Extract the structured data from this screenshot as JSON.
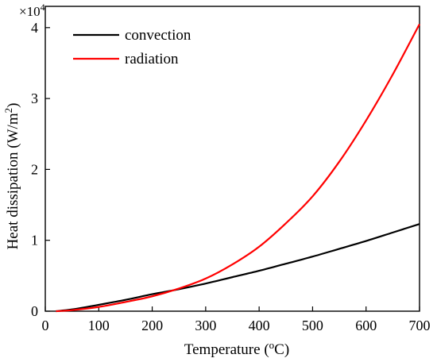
{
  "chart_data": {
    "type": "line",
    "xlabel": "Temperature (",
    "xlabel_sup": "o",
    "xlabel_unit": "C)",
    "ylabel": "Heat dissipation (W/m",
    "ylabel_sup": "2",
    "ylabel_close": ")",
    "y_multiplier": "×10",
    "y_multiplier_exp": "4",
    "xlim": [
      0,
      700
    ],
    "ylim": [
      0,
      4.3
    ],
    "x_ticks": [
      0,
      100,
      200,
      300,
      400,
      500,
      600,
      700
    ],
    "y_ticks": [
      0,
      1,
      2,
      3,
      4
    ],
    "legend_position": "top-left",
    "grid": false,
    "series": [
      {
        "name": "convection",
        "color": "#000000",
        "x": [
          20,
          50,
          100,
          150,
          200,
          250,
          300,
          350,
          400,
          450,
          500,
          550,
          600,
          650,
          700
        ],
        "y": [
          0,
          0.025,
          0.09,
          0.16,
          0.24,
          0.31,
          0.39,
          0.48,
          0.57,
          0.67,
          0.77,
          0.88,
          0.99,
          1.11,
          1.23
        ]
      },
      {
        "name": "radiation",
        "color": "#ff0000",
        "x": [
          20,
          50,
          100,
          150,
          200,
          250,
          300,
          350,
          400,
          450,
          500,
          550,
          600,
          650,
          700
        ],
        "y": [
          0,
          0.015,
          0.06,
          0.13,
          0.21,
          0.32,
          0.46,
          0.66,
          0.91,
          1.24,
          1.62,
          2.11,
          2.69,
          3.34,
          4.05
        ]
      }
    ]
  }
}
